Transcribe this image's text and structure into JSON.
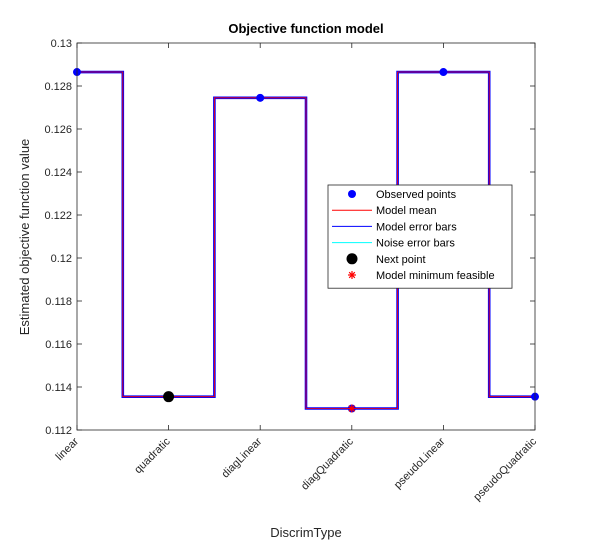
{
  "chart_data": {
    "type": "line",
    "title": "Objective function model",
    "xlabel": "DiscrimType",
    "ylabel": "Estimated objective function value",
    "categories": [
      "linear",
      "quadratic",
      "diagLinear",
      "diagQuadratic",
      "pseudoLinear",
      "pseudoQuadratic"
    ],
    "ylim": [
      0.112,
      0.13
    ],
    "yticks": [
      0.112,
      0.114,
      0.116,
      0.118,
      0.12,
      0.122,
      0.124,
      0.126,
      0.128,
      0.13
    ],
    "ytick_labels": [
      "0.112",
      "0.114",
      "0.116",
      "0.118",
      "0.12",
      "0.122",
      "0.124",
      "0.126",
      "0.128",
      "0.13"
    ],
    "grid": false,
    "legend_position": "right-center",
    "series": [
      {
        "name": "Observed points",
        "kind": "points",
        "color": "#0000ff",
        "points": [
          {
            "category": "linear",
            "value": 0.12865
          },
          {
            "category": "diagLinear",
            "value": 0.12745
          },
          {
            "category": "diagQuadratic",
            "value": 0.113
          },
          {
            "category": "pseudoLinear",
            "value": 0.12865
          },
          {
            "category": "pseudoQuadratic",
            "value": 0.11355
          }
        ]
      },
      {
        "name": "Model mean",
        "kind": "step",
        "color": "#ff0000",
        "values": [
          0.12865,
          0.11355,
          0.12745,
          0.113,
          0.12865,
          0.11355
        ]
      },
      {
        "name": "Model error bars",
        "kind": "step",
        "color": "#0000ff",
        "values": [
          0.12865,
          0.11355,
          0.12745,
          0.113,
          0.12865,
          0.11355
        ]
      },
      {
        "name": "Noise error bars",
        "kind": "step",
        "color": "#00ffff",
        "values": [
          0.12865,
          0.11355,
          0.12745,
          0.113,
          0.12865,
          0.11355
        ]
      },
      {
        "name": "Next point",
        "kind": "point",
        "color": "#000000",
        "points": [
          {
            "category": "quadratic",
            "value": 0.11355
          }
        ]
      },
      {
        "name": "Model minimum feasible",
        "kind": "star",
        "color": "#ff0000",
        "points": [
          {
            "category": "diagQuadratic",
            "value": 0.113
          }
        ]
      }
    ]
  }
}
